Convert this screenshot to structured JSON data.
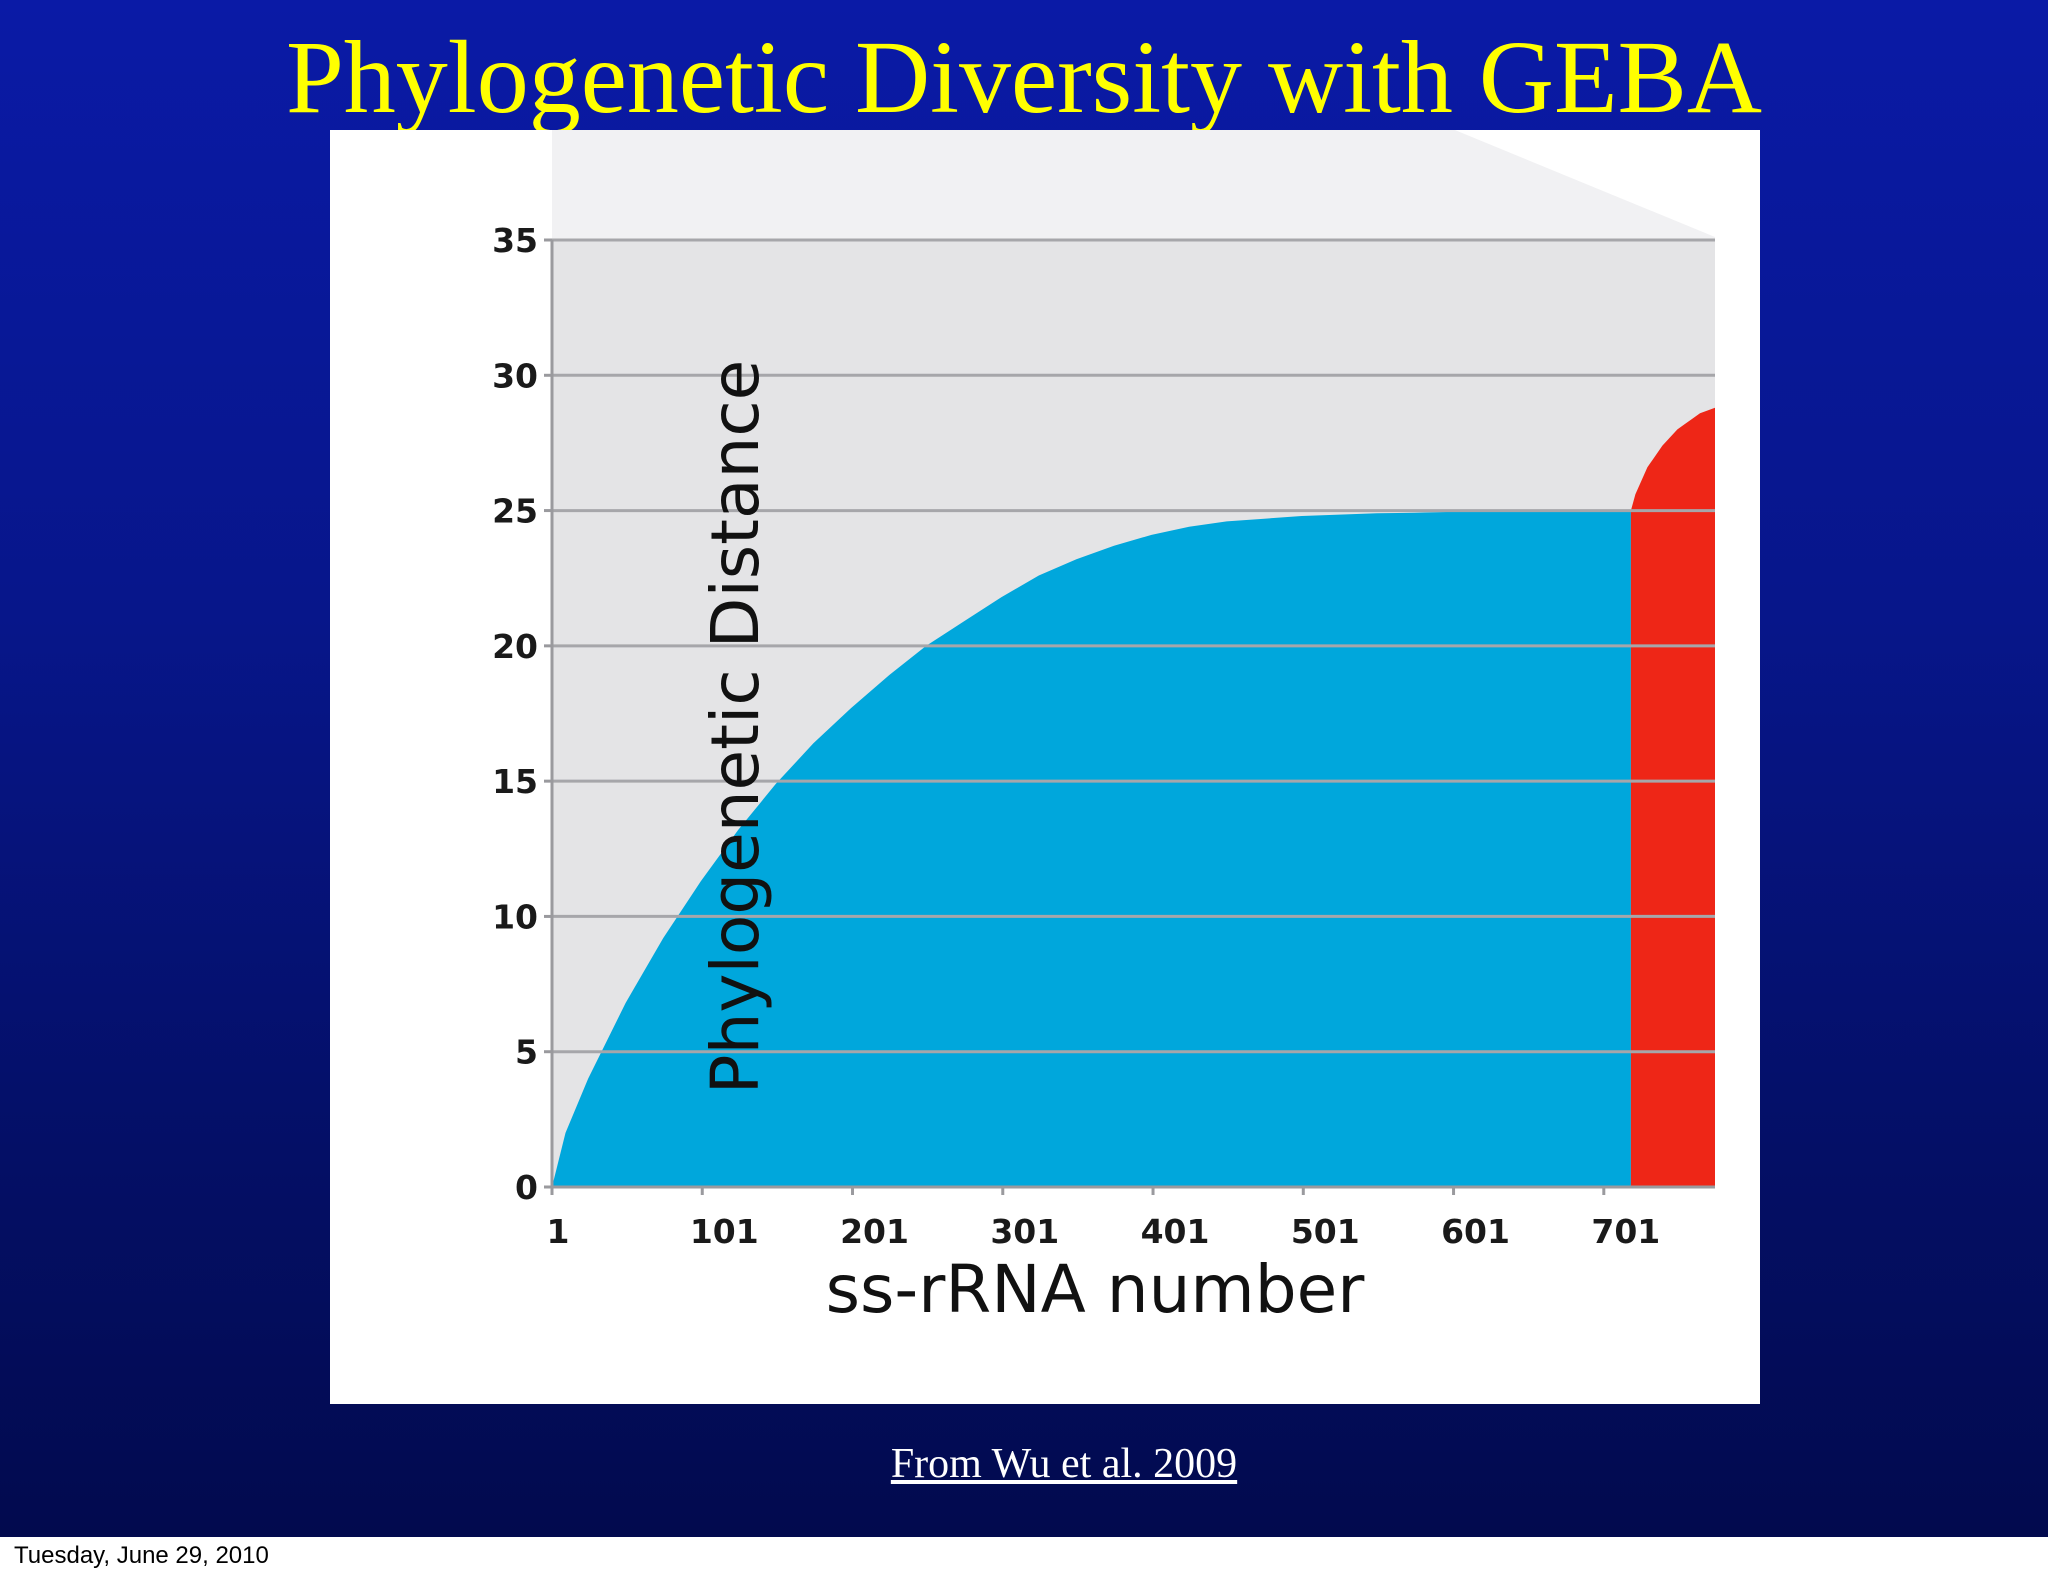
{
  "slide": {
    "title": "Phylogenetic Diversity with GEBA",
    "caption": "From Wu et al. 2009",
    "footer_date": "Tuesday, June 29, 2010"
  },
  "colors": {
    "background_top": "#0a1aa6",
    "background_bottom": "#020a4e",
    "title": "#ffff00",
    "existing_area": "#00a7dc",
    "geba_area": "#ee2617",
    "plot_background": "#e4e4e6"
  },
  "chart_data": {
    "type": "area",
    "title": "",
    "xlabel": "ss-rRNA number",
    "ylabel": "Phylogenetic Distance",
    "xlim": [
      1,
      775
    ],
    "ylim": [
      0,
      35
    ],
    "x_ticks": [
      "1",
      "101",
      "201",
      "301",
      "401",
      "501",
      "601",
      "701"
    ],
    "x_tick_values": [
      1,
      101,
      201,
      301,
      401,
      501,
      601,
      701
    ],
    "y_ticks": [
      "0",
      "5",
      "10",
      "15",
      "20",
      "25",
      "30",
      "35"
    ],
    "y_tick_values": [
      0,
      5,
      10,
      15,
      20,
      25,
      30,
      35
    ],
    "grid": "horizontal",
    "series": [
      {
        "color": "#00a7dc",
        "x": [
          1,
          10,
          25,
          50,
          75,
          100,
          125,
          150,
          175,
          200,
          225,
          250,
          275,
          300,
          325,
          350,
          375,
          400,
          425,
          450,
          475,
          500,
          525,
          550,
          575,
          600,
          625,
          650,
          675,
          700,
          719
        ],
        "y": [
          0,
          2.0,
          4.0,
          6.8,
          9.2,
          11.3,
          13.2,
          14.9,
          16.4,
          17.7,
          18.9,
          20.0,
          20.9,
          21.8,
          22.6,
          23.2,
          23.7,
          24.1,
          24.4,
          24.6,
          24.7,
          24.8,
          24.85,
          24.9,
          24.92,
          24.95,
          24.97,
          24.98,
          24.99,
          25.0,
          25.0
        ]
      },
      {
        "color": "#ee2617",
        "x": [
          719,
          722,
          726,
          730,
          735,
          740,
          745,
          750,
          755,
          760,
          765,
          770,
          775
        ],
        "y": [
          25.0,
          25.6,
          26.1,
          26.6,
          27.0,
          27.4,
          27.7,
          28.0,
          28.2,
          28.4,
          28.6,
          28.7,
          28.8
        ]
      }
    ]
  }
}
